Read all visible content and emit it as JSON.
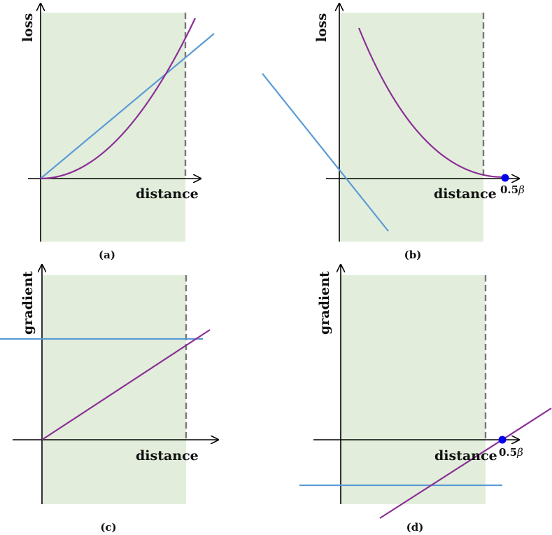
{
  "panels": [
    {
      "id": "a",
      "caption": "(a)",
      "y_label": "loss",
      "x_label": "distance"
    },
    {
      "id": "b",
      "caption": "(b)",
      "y_label": "loss",
      "x_label": "distance",
      "marker_label": "0.5",
      "marker_symbol": "β"
    },
    {
      "id": "c",
      "caption": "(c)",
      "y_label": "gradient",
      "x_label": "distance"
    },
    {
      "id": "d",
      "caption": "(d)",
      "y_label": "gradient",
      "x_label": "distance",
      "marker_label": "0.5",
      "marker_symbol": "β"
    }
  ],
  "colors": {
    "region": "#e2eedb",
    "blue_line": "#5b9bd5",
    "purple_line": "#8b2f96",
    "dashed_boundary": "#777777",
    "marker": "#0000ee"
  }
}
